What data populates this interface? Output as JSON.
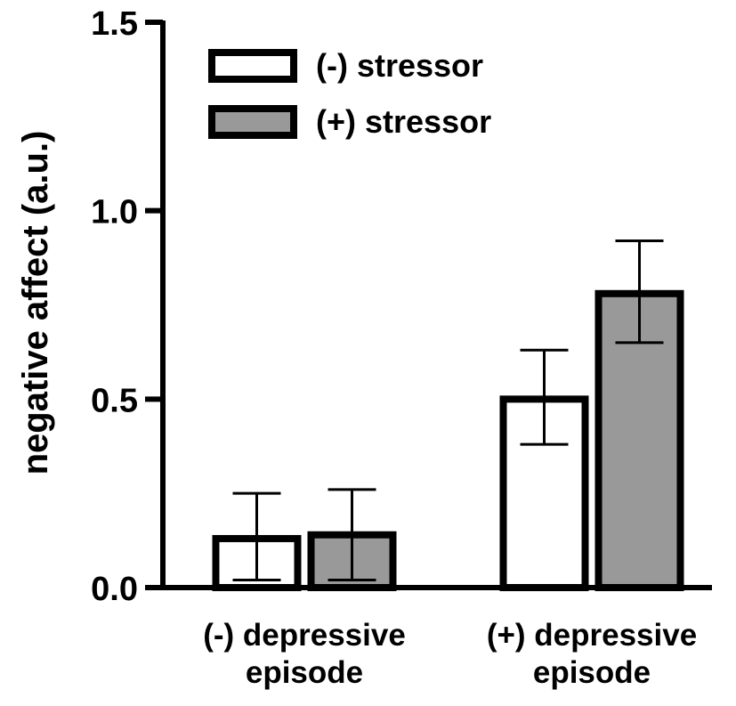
{
  "chart_data": {
    "type": "bar",
    "title": "",
    "xlabel": "",
    "ylabel": "negative affect (a.u.)",
    "ylim": [
      0,
      1.5
    ],
    "yticks": [
      0.0,
      0.5,
      1.0,
      1.5
    ],
    "ytick_labels": [
      "0.0",
      "0.5",
      "1.0",
      "1.5"
    ],
    "categories": [
      {
        "lines": [
          "(-) depressive",
          "episode"
        ]
      },
      {
        "lines": [
          "(+) depressive",
          "episode"
        ]
      }
    ],
    "series": [
      {
        "name": "(-) stressor",
        "color": "#ffffff",
        "values": [
          0.13,
          0.5
        ],
        "err_low": [
          0.02,
          0.38
        ],
        "err_high": [
          0.25,
          0.63
        ]
      },
      {
        "name": "(+) stressor",
        "color": "#999999",
        "values": [
          0.14,
          0.78
        ],
        "err_low": [
          0.02,
          0.65
        ],
        "err_high": [
          0.26,
          0.92
        ]
      }
    ],
    "legend_position": "top-left",
    "grid": false
  }
}
